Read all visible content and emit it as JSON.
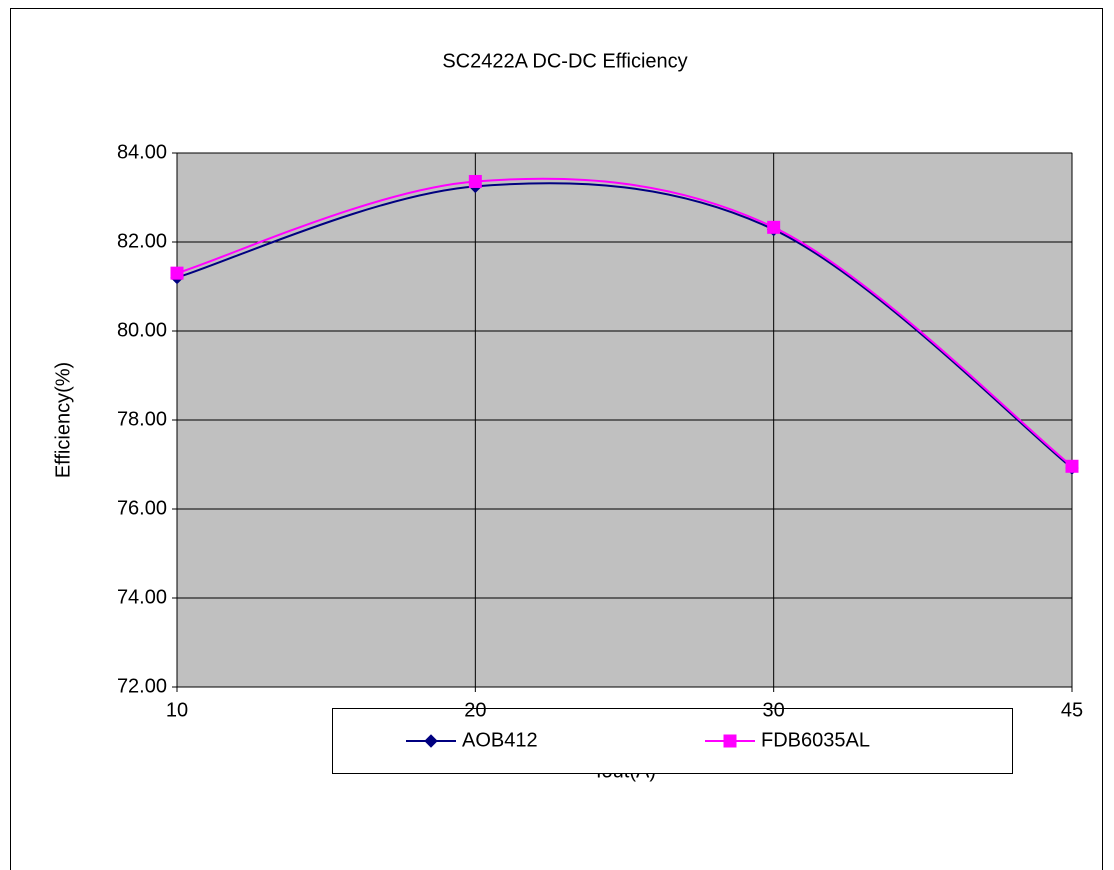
{
  "chart_data": {
    "type": "line",
    "title": "SC2422A DC-DC Efficiency",
    "x_label": "Iout(A)",
    "y_label": "Efficiency(%)",
    "categories": [
      "10",
      "20",
      "30",
      "45"
    ],
    "series": [
      {
        "name": "AOB412",
        "color": "#000080",
        "marker": "diamond",
        "values": [
          81.2,
          83.25,
          82.28,
          76.92
        ]
      },
      {
        "name": "FDB6035AL",
        "color": "#ff00ff",
        "marker": "square",
        "values": [
          81.3,
          83.36,
          82.33,
          76.96
        ]
      }
    ],
    "ylim": [
      72,
      84
    ],
    "yticks": [
      {
        "value": 72,
        "label": "72.00"
      },
      {
        "value": 74,
        "label": "74.00"
      },
      {
        "value": 76,
        "label": "76.00"
      },
      {
        "value": 78,
        "label": "78.00"
      },
      {
        "value": 80,
        "label": "80.00"
      },
      {
        "value": 82,
        "label": "82.00"
      },
      {
        "value": 84,
        "label": "84.00"
      }
    ],
    "grid": true,
    "smooth": true,
    "plot_background": "#c0c0c0",
    "legend": "bottom"
  }
}
